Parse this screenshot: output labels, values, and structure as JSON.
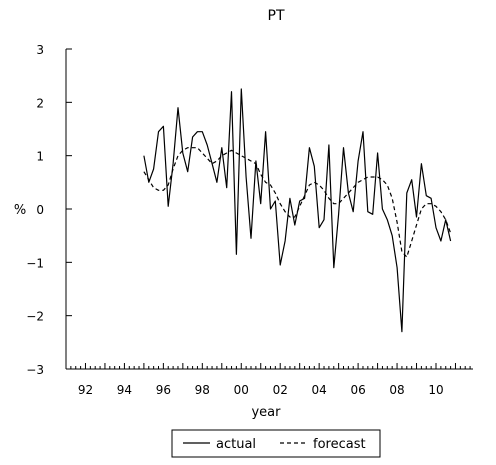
{
  "chart_data": {
    "type": "line",
    "title": "PT",
    "xlabel": "year",
    "ylabel": "%",
    "x_unit": "year",
    "xlim": [
      1991.0,
      2011.9
    ],
    "ylim": [
      -3,
      3
    ],
    "yticks": [
      3,
      2,
      1,
      0,
      -1,
      -2,
      -3
    ],
    "xticks": [
      {
        "value": 1992,
        "label": "92"
      },
      {
        "value": 1994,
        "label": "94"
      },
      {
        "value": 1996,
        "label": "96"
      },
      {
        "value": 1998,
        "label": "98"
      },
      {
        "value": 2000,
        "label": "00"
      },
      {
        "value": 2002,
        "label": "02"
      },
      {
        "value": 2004,
        "label": "04"
      },
      {
        "value": 2006,
        "label": "06"
      },
      {
        "value": 2008,
        "label": "08"
      },
      {
        "value": 2010,
        "label": "10"
      }
    ],
    "ytick_labels": [
      "3",
      "2",
      "1",
      "0",
      "−1",
      "−2",
      "−3"
    ],
    "grid": false,
    "legend_position": "bottom",
    "colors": {
      "actual": "#000000",
      "forecast": "#000000"
    },
    "series": [
      {
        "name": "actual",
        "style": "solid",
        "points": [
          [
            1995.0,
            1.0
          ],
          [
            1995.25,
            0.5
          ],
          [
            1995.5,
            0.75
          ],
          [
            1995.75,
            1.45
          ],
          [
            1996.0,
            1.55
          ],
          [
            1996.25,
            0.05
          ],
          [
            1996.5,
            0.85
          ],
          [
            1996.75,
            1.9
          ],
          [
            1997.0,
            1.05
          ],
          [
            1997.25,
            0.7
          ],
          [
            1997.5,
            1.35
          ],
          [
            1997.75,
            1.45
          ],
          [
            1998.0,
            1.45
          ],
          [
            1998.25,
            1.2
          ],
          [
            1998.5,
            0.85
          ],
          [
            1998.75,
            0.5
          ],
          [
            1999.0,
            1.15
          ],
          [
            1999.25,
            0.4
          ],
          [
            1999.5,
            2.2
          ],
          [
            1999.75,
            -0.85
          ],
          [
            2000.0,
            2.25
          ],
          [
            2000.25,
            0.6
          ],
          [
            2000.5,
            -0.55
          ],
          [
            2000.75,
            0.9
          ],
          [
            2001.0,
            0.1
          ],
          [
            2001.25,
            1.45
          ],
          [
            2001.5,
            0.0
          ],
          [
            2001.75,
            0.15
          ],
          [
            2002.0,
            -1.05
          ],
          [
            2002.25,
            -0.6
          ],
          [
            2002.5,
            0.2
          ],
          [
            2002.75,
            -0.3
          ],
          [
            2003.0,
            0.15
          ],
          [
            2003.25,
            0.2
          ],
          [
            2003.5,
            1.15
          ],
          [
            2003.75,
            0.8
          ],
          [
            2004.0,
            -0.35
          ],
          [
            2004.25,
            -0.2
          ],
          [
            2004.5,
            1.2
          ],
          [
            2004.75,
            -1.1
          ],
          [
            2005.0,
            -0.1
          ],
          [
            2005.25,
            1.15
          ],
          [
            2005.5,
            0.3
          ],
          [
            2005.75,
            -0.05
          ],
          [
            2006.0,
            0.9
          ],
          [
            2006.25,
            1.45
          ],
          [
            2006.5,
            -0.05
          ],
          [
            2006.75,
            -0.1
          ],
          [
            2007.0,
            1.05
          ],
          [
            2007.25,
            0.0
          ],
          [
            2007.5,
            -0.2
          ],
          [
            2007.75,
            -0.5
          ],
          [
            2008.0,
            -1.1
          ],
          [
            2008.25,
            -2.3
          ],
          [
            2008.5,
            0.3
          ],
          [
            2008.75,
            0.55
          ],
          [
            2009.0,
            -0.15
          ],
          [
            2009.25,
            0.85
          ],
          [
            2009.5,
            0.25
          ],
          [
            2009.75,
            0.2
          ],
          [
            2010.0,
            -0.35
          ],
          [
            2010.25,
            -0.6
          ],
          [
            2010.5,
            -0.2
          ],
          [
            2010.75,
            -0.6
          ]
        ]
      },
      {
        "name": "forecast",
        "style": "dashed",
        "points": [
          [
            1995.0,
            0.7
          ],
          [
            1995.25,
            0.55
          ],
          [
            1995.5,
            0.4
          ],
          [
            1995.75,
            0.35
          ],
          [
            1996.0,
            0.35
          ],
          [
            1996.25,
            0.45
          ],
          [
            1996.5,
            0.75
          ],
          [
            1996.75,
            1.0
          ],
          [
            1997.0,
            1.1
          ],
          [
            1997.25,
            1.15
          ],
          [
            1997.5,
            1.15
          ],
          [
            1997.75,
            1.15
          ],
          [
            1998.0,
            1.05
          ],
          [
            1998.25,
            0.95
          ],
          [
            1998.5,
            0.85
          ],
          [
            1998.75,
            0.9
          ],
          [
            1999.0,
            1.0
          ],
          [
            1999.25,
            1.05
          ],
          [
            1999.5,
            1.1
          ],
          [
            1999.75,
            1.05
          ],
          [
            2000.0,
            1.0
          ],
          [
            2000.25,
            0.95
          ],
          [
            2000.5,
            0.9
          ],
          [
            2000.75,
            0.85
          ],
          [
            2001.0,
            0.65
          ],
          [
            2001.25,
            0.5
          ],
          [
            2001.5,
            0.45
          ],
          [
            2001.75,
            0.3
          ],
          [
            2002.0,
            0.1
          ],
          [
            2002.25,
            -0.05
          ],
          [
            2002.5,
            -0.15
          ],
          [
            2002.75,
            -0.15
          ],
          [
            2003.0,
            0.05
          ],
          [
            2003.25,
            0.25
          ],
          [
            2003.5,
            0.45
          ],
          [
            2003.75,
            0.5
          ],
          [
            2004.0,
            0.45
          ],
          [
            2004.25,
            0.35
          ],
          [
            2004.5,
            0.2
          ],
          [
            2004.75,
            0.1
          ],
          [
            2005.0,
            0.1
          ],
          [
            2005.25,
            0.2
          ],
          [
            2005.5,
            0.3
          ],
          [
            2005.75,
            0.4
          ],
          [
            2006.0,
            0.5
          ],
          [
            2006.25,
            0.55
          ],
          [
            2006.5,
            0.6
          ],
          [
            2006.75,
            0.6
          ],
          [
            2007.0,
            0.6
          ],
          [
            2007.25,
            0.55
          ],
          [
            2007.5,
            0.45
          ],
          [
            2007.75,
            0.2
          ],
          [
            2008.0,
            -0.25
          ],
          [
            2008.25,
            -0.8
          ],
          [
            2008.5,
            -0.9
          ],
          [
            2008.75,
            -0.6
          ],
          [
            2009.0,
            -0.3
          ],
          [
            2009.25,
            0.0
          ],
          [
            2009.5,
            0.1
          ],
          [
            2009.75,
            0.1
          ],
          [
            2010.0,
            0.05
          ],
          [
            2010.25,
            -0.05
          ],
          [
            2010.5,
            -0.2
          ],
          [
            2010.75,
            -0.45
          ]
        ]
      }
    ]
  }
}
